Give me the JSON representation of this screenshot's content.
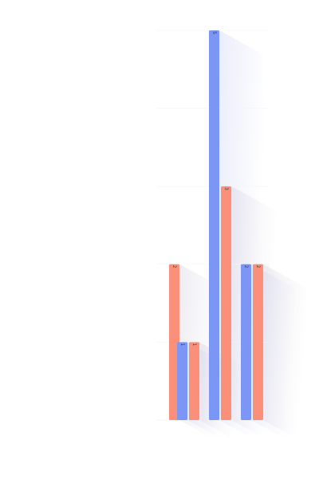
{
  "chart_data": {
    "type": "bar",
    "categories": [
      "",
      "",
      "",
      ""
    ],
    "series": [
      {
        "values": [
          null,
          1,
          5,
          2
        ]
      },
      {
        "values": [
          2,
          1,
          3,
          2
        ]
      }
    ],
    "ylim": [
      0,
      5
    ],
    "grid": true,
    "legend": "none",
    "colors": [
      "#7b96f5",
      "#fa907a"
    ]
  }
}
